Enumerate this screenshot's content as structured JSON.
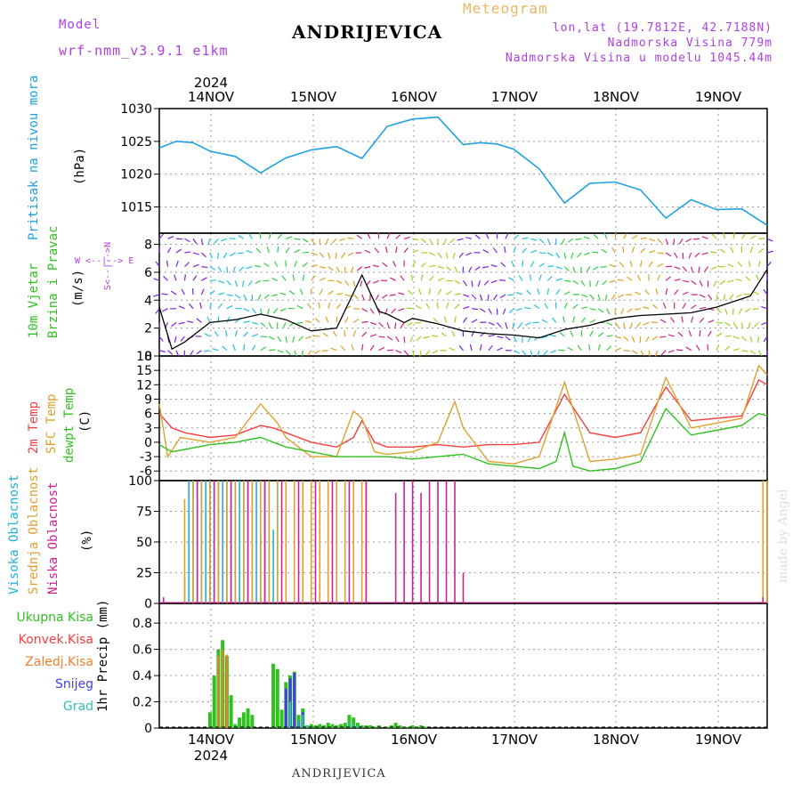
{
  "header": {
    "model_label": "Model",
    "model_name": "wrf-nmm_v3.9.1 e1km",
    "station_title": "ANDRIJEVICA",
    "meteogram": "Meteogram",
    "lonlat": "lon,lat (19.7812E, 42.7188N)",
    "elevation": "Nadmorska Visina 779m",
    "model_elevation": "Nadmorska Visina u modelu 1045.44m",
    "credit": "made by Angel",
    "footer": "ANDRIJEVICA"
  },
  "dates": {
    "year": "2024",
    "labels": [
      "14NOV",
      "15NOV",
      "16NOV",
      "17NOV",
      "18NOV",
      "19NOV"
    ]
  },
  "panel_labels": {
    "pressure": "Pritisak na nivou mora",
    "pressure_unit": "(hPa)",
    "wind_a": "10m Vjetar",
    "wind_b": "Brzina i Pravac",
    "wind_unit": "(m/s)",
    "compass_ns": "S<--|-->N",
    "compass_we": "W <--|--> E",
    "temp_2m": "2m Temp",
    "temp_sfc": "SFC Temp",
    "temp_dew": "dewpt Temp",
    "temp_unit": "(C)",
    "cloud_high": "Visoka Oblacnost",
    "cloud_mid": "Srednja Oblacnost",
    "cloud_low": "Niska Oblacnost",
    "cloud_unit": "(%)",
    "precip_unit": "1hr Precip (mm)"
  },
  "precip_legend": [
    "Ukupna Kisa",
    "Konvek.Kisa",
    "Zaledj.Kisa",
    "Snijeg",
    "Grad"
  ],
  "colors": {
    "pressure": "#1ea0e0",
    "temp2m": "#f04040",
    "sfc": "#e0a030",
    "dew": "#30c020",
    "cloud_high": "#20b0e0",
    "cloud_mid": "#e0a030",
    "cloud_low": "#d02090",
    "total": "#30c020",
    "conv": "#f04040",
    "frz": "#f08030",
    "snow": "#4040e0",
    "graupel": "#30c0b0",
    "purple": "#b040e0"
  },
  "chart_data": [
    {
      "type": "line",
      "name": "pressure",
      "ylabel": "(hPa)",
      "ylim": [
        1011,
        1030
      ],
      "yticks": [
        1015,
        1020,
        1025,
        1030
      ],
      "x": [
        0,
        4,
        8,
        12,
        18,
        24,
        30,
        36,
        42,
        48,
        54,
        60,
        66,
        72,
        76,
        80,
        84,
        90,
        96,
        102,
        108,
        114,
        120,
        126,
        132,
        138,
        144
      ],
      "values": [
        1024,
        1025,
        1024.8,
        1023.5,
        1022.7,
        1020.2,
        1022.5,
        1023.7,
        1024.2,
        1022.4,
        1027.3,
        1028.4,
        1028.7,
        1024.5,
        1024.8,
        1024.6,
        1023.8,
        1020.8,
        1015.6,
        1018.6,
        1018.8,
        1017.6,
        1013.3,
        1016.1,
        1014.6,
        1014.7,
        1012.2
      ]
    },
    {
      "type": "line",
      "name": "wind_speed",
      "ylabel": "(m/s)",
      "ylim": [
        0,
        8.8
      ],
      "yticks": [
        0,
        2,
        4,
        6,
        8
      ],
      "x": [
        0,
        3,
        6,
        12,
        18,
        24,
        30,
        36,
        42,
        48,
        52,
        54,
        58,
        60,
        66,
        72,
        78,
        84,
        90,
        96,
        102,
        108,
        114,
        120,
        126,
        132,
        138,
        140,
        144
      ],
      "values": [
        3.5,
        0.5,
        1.0,
        2.4,
        2.6,
        3.0,
        2.6,
        1.8,
        2.0,
        5.8,
        3.2,
        3.0,
        2.4,
        2.7,
        2.3,
        1.8,
        1.6,
        1.5,
        1.3,
        1.9,
        2.2,
        2.7,
        2.9,
        3.0,
        3.1,
        3.5,
        4.1,
        4.3,
        6.2
      ]
    },
    {
      "type": "line",
      "name": "temperature",
      "ylabel": "(C)",
      "ylim": [
        -8,
        18
      ],
      "yticks": [
        -6,
        -3,
        0,
        3,
        6,
        9,
        12,
        15,
        18
      ],
      "series": [
        {
          "name": "2m Temp",
          "x": [
            0,
            3,
            6,
            12,
            18,
            24,
            27,
            30,
            36,
            42,
            46,
            48,
            51,
            54,
            60,
            66,
            72,
            78,
            84,
            90,
            96,
            102,
            108,
            114,
            120,
            126,
            132,
            138,
            142,
            144
          ],
          "values": [
            6,
            3,
            2,
            1,
            1.5,
            3.5,
            3,
            2,
            0,
            -1,
            1,
            4.5,
            0,
            -1,
            -1,
            -0.5,
            -1,
            -0.5,
            -0.5,
            0,
            10,
            2,
            1,
            2,
            11.5,
            4.5,
            5,
            5.5,
            13,
            12
          ]
        },
        {
          "name": "SFC Temp",
          "x": [
            0,
            2,
            5,
            12,
            18,
            24,
            28,
            30,
            36,
            42,
            46,
            48,
            51,
            54,
            60,
            66,
            70,
            72,
            78,
            84,
            90,
            96,
            102,
            108,
            114,
            120,
            126,
            132,
            138,
            142,
            144
          ],
          "values": [
            8,
            -3,
            1,
            0,
            1,
            8,
            4,
            1,
            -3,
            -3,
            6.5,
            5,
            -2,
            -2.5,
            -2,
            0,
            8.5,
            3,
            -4,
            -4.5,
            -3,
            12.5,
            -4,
            -3.5,
            -2.5,
            13.5,
            3,
            4,
            5,
            16,
            14
          ]
        },
        {
          "name": "dewpt Temp",
          "x": [
            0,
            3,
            6,
            12,
            18,
            24,
            30,
            36,
            42,
            48,
            54,
            60,
            66,
            72,
            78,
            84,
            90,
            94,
            96,
            98,
            102,
            108,
            114,
            120,
            126,
            132,
            138,
            142,
            144
          ],
          "values": [
            -0.5,
            -2,
            -1.5,
            -0.5,
            0,
            1,
            -1,
            -2,
            -3,
            -3,
            -3,
            -3.5,
            -3,
            -2.5,
            -4.5,
            -5,
            -5.5,
            -4,
            2,
            -5,
            -6,
            -5.5,
            -4,
            7,
            1.5,
            2.5,
            3.5,
            6,
            5.5
          ]
        }
      ]
    },
    {
      "type": "bar",
      "name": "cloud_cover",
      "ylabel": "(%)",
      "ylim": [
        0,
        100
      ],
      "yticks": [
        0,
        25,
        50,
        75,
        100
      ],
      "series": [
        {
          "name": "Visoka Oblacnost",
          "x": [
            6,
            7,
            8,
            9,
            10,
            11,
            12,
            13,
            14,
            15,
            16,
            17,
            18,
            19,
            20,
            21,
            22,
            23,
            24,
            25,
            26,
            27,
            28
          ],
          "values": [
            22,
            100,
            100,
            100,
            100,
            100,
            100,
            100,
            100,
            100,
            100,
            100,
            100,
            100,
            100,
            100,
            100,
            100,
            55,
            100,
            100,
            60,
            100
          ]
        },
        {
          "name": "Srednja Oblacnost",
          "x": [
            6,
            8,
            10,
            12,
            14,
            16,
            18,
            20,
            22,
            24,
            26,
            28,
            30,
            32,
            34,
            36,
            38,
            40,
            42,
            44,
            46,
            48,
            49,
            143,
            144
          ],
          "values": [
            85,
            100,
            100,
            100,
            100,
            100,
            100,
            100,
            100,
            100,
            100,
            100,
            100,
            100,
            100,
            100,
            100,
            100,
            100,
            100,
            100,
            100,
            100,
            100,
            100
          ]
        },
        {
          "name": "Niska Oblacnost",
          "x": [
            1,
            9,
            13,
            17,
            21,
            25,
            29,
            33,
            37,
            41,
            45,
            49,
            56,
            58,
            60,
            62,
            64,
            66,
            68,
            70,
            72,
            143
          ],
          "values": [
            5,
            100,
            100,
            100,
            100,
            100,
            100,
            100,
            100,
            100,
            100,
            100,
            90,
            100,
            100,
            90,
            100,
            100,
            100,
            100,
            25,
            5
          ]
        }
      ]
    },
    {
      "type": "bar",
      "name": "precip",
      "ylabel": "1hr Precip (mm)",
      "ylim": [
        0,
        0.95
      ],
      "yticks": [
        0,
        0.2,
        0.4,
        0.6,
        0.8
      ],
      "series": [
        {
          "name": "Ukupna Kisa",
          "x": [
            12,
            13,
            14,
            15,
            16,
            17,
            18,
            19,
            20,
            21,
            22,
            27,
            28,
            29,
            30,
            31,
            32,
            33,
            34,
            35,
            36,
            37,
            38,
            39,
            40,
            41,
            42,
            43,
            44,
            45,
            46,
            47,
            48,
            49,
            50,
            51,
            52,
            54,
            55,
            56,
            57,
            58,
            59,
            60,
            61,
            62,
            63
          ],
          "values": [
            0.12,
            0.4,
            0.6,
            0.67,
            0.55,
            0.25,
            0.03,
            0.08,
            0.12,
            0.15,
            0.1,
            0.49,
            0.45,
            0.14,
            0.35,
            0.4,
            0.43,
            0.1,
            0.15,
            0.02,
            0.03,
            0.02,
            0.03,
            0.02,
            0.04,
            0.03,
            0.02,
            0.03,
            0.04,
            0.1,
            0.08,
            0.04,
            0.02,
            0.02,
            0.02,
            0.01,
            0.02,
            0.01,
            0.02,
            0.04,
            0.02,
            0.01,
            0.01,
            0.02,
            0.01,
            0.02,
            0.01
          ]
        },
        {
          "name": "Zaledj.Kisa",
          "x": [
            14,
            15,
            16
          ],
          "values": [
            0.55,
            0.6,
            0.56
          ]
        },
        {
          "name": "Snijeg",
          "x": [
            30,
            31,
            32,
            33,
            34
          ],
          "values": [
            0.3,
            0.38,
            0.42,
            0.05,
            0.12
          ]
        },
        {
          "name": "Grad",
          "x": [
            31,
            33,
            34,
            35,
            45,
            46,
            47
          ],
          "values": [
            0.2,
            0.05,
            0.1,
            0.02,
            0.05,
            0.03,
            0.02
          ]
        }
      ]
    }
  ]
}
